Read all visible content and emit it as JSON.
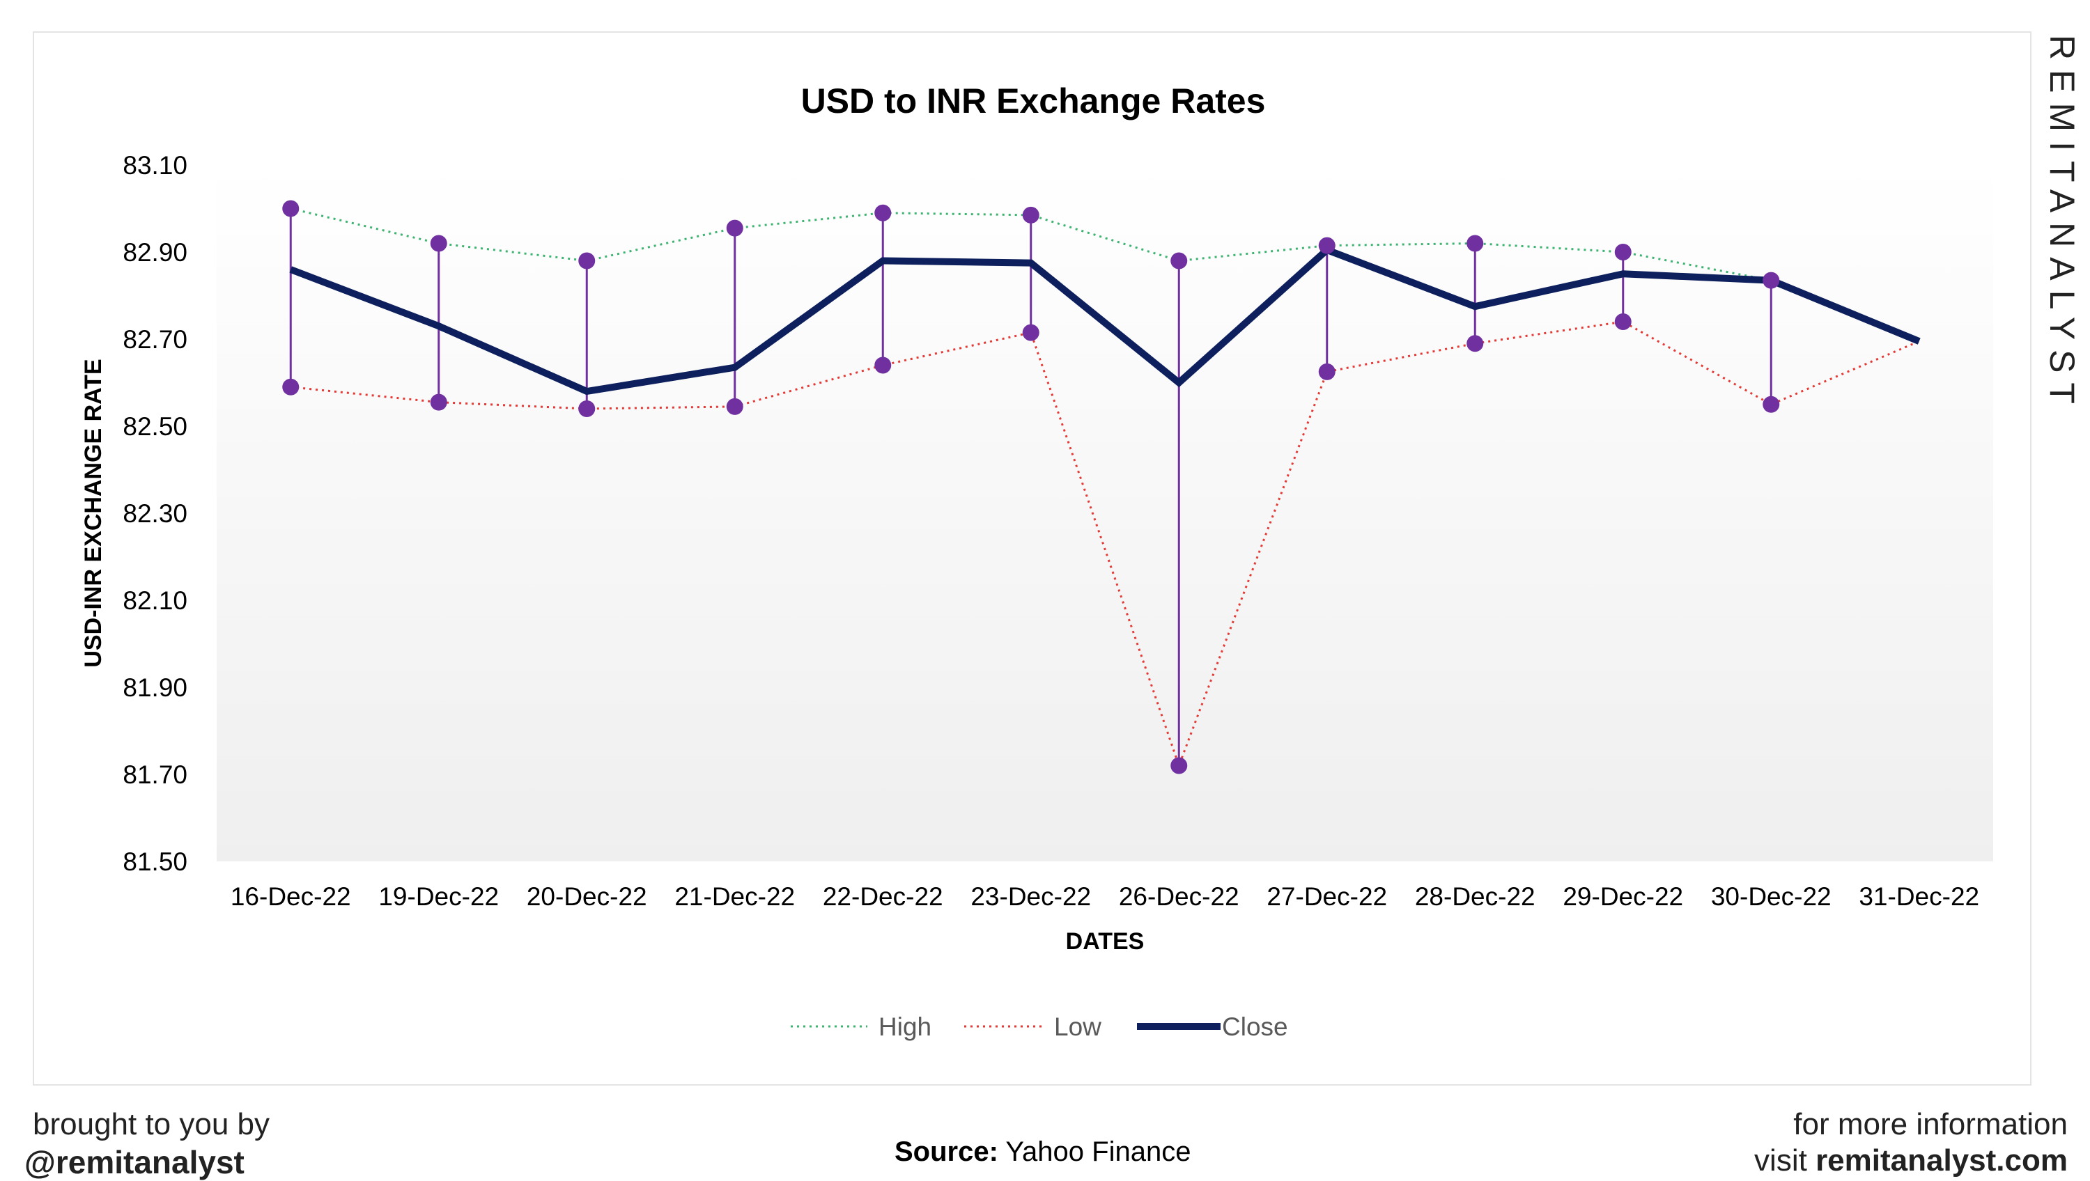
{
  "chart_data": {
    "type": "line",
    "title": "USD to INR Exchange Rates",
    "xlabel": "DATES",
    "ylabel": "USD-INR EXCHANGE RATE",
    "ylim": [
      81.5,
      83.1
    ],
    "yticks": [
      "81.50",
      "81.70",
      "81.90",
      "82.10",
      "82.30",
      "82.50",
      "82.70",
      "82.90",
      "83.10"
    ],
    "grid": false,
    "legend_position": "bottom",
    "categories": [
      "16-Dec-22",
      "19-Dec-22",
      "20-Dec-22",
      "21-Dec-22",
      "22-Dec-22",
      "23-Dec-22",
      "26-Dec-22",
      "27-Dec-22",
      "28-Dec-22",
      "29-Dec-22",
      "30-Dec-22",
      "31-Dec-22"
    ],
    "series": [
      {
        "name": "High",
        "color": "#3cb371",
        "style": "dotted",
        "values": [
          83.0,
          82.92,
          82.88,
          82.955,
          82.99,
          82.985,
          82.88,
          82.915,
          82.92,
          82.9,
          82.835,
          82.695
        ]
      },
      {
        "name": "Low",
        "color": "#e53935",
        "style": "dotted",
        "values": [
          82.59,
          82.555,
          82.54,
          82.545,
          82.64,
          82.715,
          81.72,
          82.625,
          82.69,
          82.74,
          82.55,
          82.695
        ]
      },
      {
        "name": "Close",
        "color": "#0d1f5c",
        "style": "solid",
        "values": [
          82.86,
          82.73,
          82.58,
          82.635,
          82.88,
          82.875,
          82.6,
          82.905,
          82.775,
          82.85,
          82.835,
          82.695
        ]
      }
    ],
    "marker_color": "#7030a0"
  },
  "watermark": "REMITANALYST",
  "footer": {
    "left_line1": "brought to you by",
    "left_line2": "@remitanalyst",
    "source_label": "Source:",
    "source_value": "Yahoo Finance",
    "right_line1": "for more information",
    "right_line2_prefix": "visit",
    "right_line2_site": "remitanalyst.com"
  }
}
